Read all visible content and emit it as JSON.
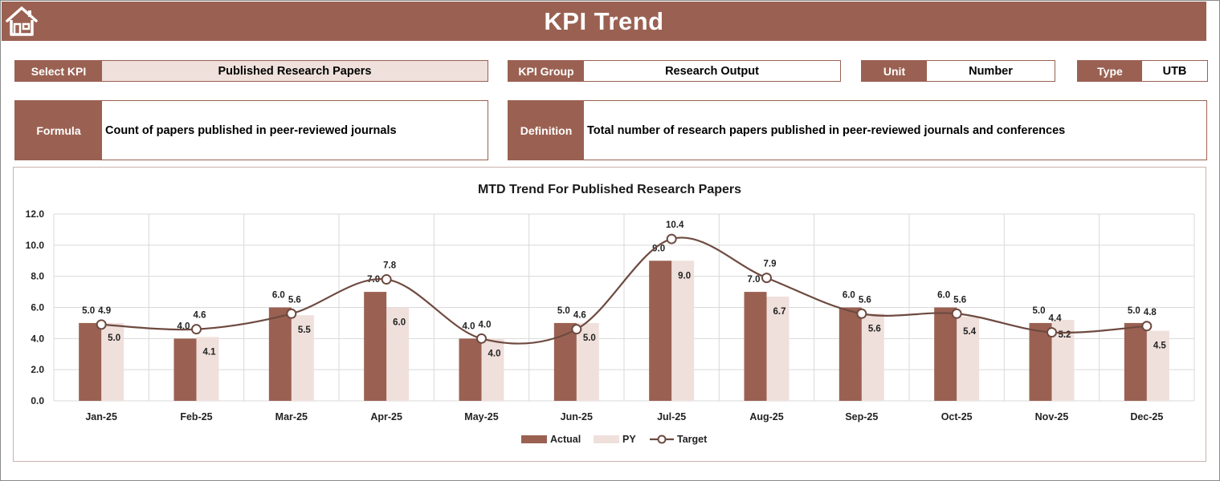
{
  "header": {
    "title": "KPI Trend"
  },
  "icons": {
    "home": "home-icon"
  },
  "colors": {
    "accent": "#9a6152",
    "actual": "#9a6152",
    "py": "#efe0dc",
    "target": "#6e4a40",
    "shade": "#efe0dc"
  },
  "fields": {
    "select_kpi": {
      "label": "Select KPI",
      "value": "Published Research Papers"
    },
    "kpi_group": {
      "label": "KPI Group",
      "value": "Research Output"
    },
    "unit": {
      "label": "Unit",
      "value": "Number"
    },
    "type": {
      "label": "Type",
      "value": "UTB"
    },
    "formula": {
      "label": "Formula",
      "value": "Count of papers published in peer-reviewed journals"
    },
    "definition": {
      "label": "Definition",
      "value": "Total number of research papers published in peer-reviewed journals and conferences"
    }
  },
  "chart_data": {
    "type": "bar",
    "title": "MTD Trend For Published Research Papers",
    "xlabel": "",
    "ylabel": "",
    "ylim": [
      0,
      12
    ],
    "yticks": [
      "0.0",
      "2.0",
      "4.0",
      "6.0",
      "8.0",
      "10.0",
      "12.0"
    ],
    "grid": true,
    "legend_position": "bottom",
    "categories": [
      "Jan-25",
      "Feb-25",
      "Mar-25",
      "Apr-25",
      "May-25",
      "Jun-25",
      "Jul-25",
      "Aug-25",
      "Sep-25",
      "Oct-25",
      "Nov-25",
      "Dec-25"
    ],
    "series": [
      {
        "name": "Actual",
        "kind": "bar",
        "values": [
          5.0,
          4.0,
          6.0,
          7.0,
          4.0,
          5.0,
          9.0,
          7.0,
          6.0,
          6.0,
          5.0,
          5.0
        ]
      },
      {
        "name": "PY",
        "kind": "bar",
        "values": [
          5.0,
          4.1,
          5.5,
          6.0,
          4.0,
          5.0,
          9.0,
          6.7,
          5.6,
          5.4,
          5.2,
          4.5
        ]
      },
      {
        "name": "Target",
        "kind": "line",
        "values": [
          4.9,
          4.6,
          5.6,
          7.8,
          4.0,
          4.6,
          10.4,
          7.9,
          5.6,
          5.6,
          4.4,
          4.8
        ]
      }
    ]
  }
}
